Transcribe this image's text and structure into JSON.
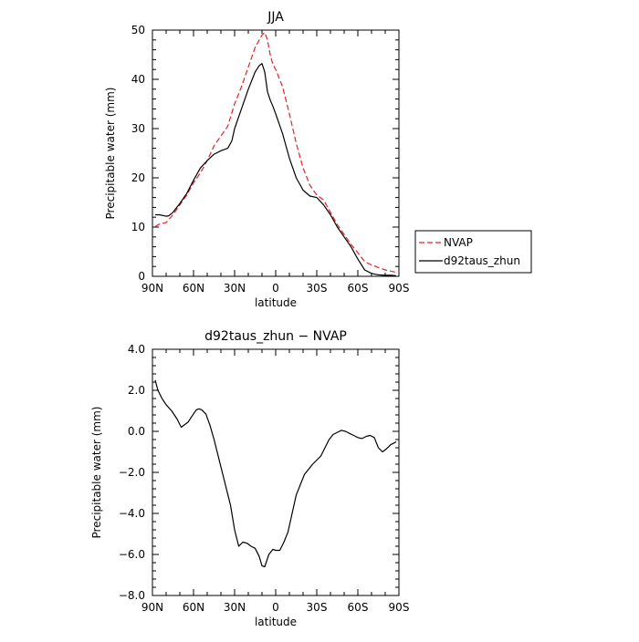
{
  "chart_data": [
    {
      "type": "line",
      "title": "JJA",
      "xlabel": "latitude",
      "ylabel": "Precipitable water (mm)",
      "xlim": [
        90,
        -90
      ],
      "ylim": [
        0,
        50
      ],
      "x_ticks": [
        90,
        60,
        30,
        0,
        -30,
        -60,
        -90
      ],
      "x_tick_labels": [
        "90N",
        "60N",
        "30N",
        "0",
        "30S",
        "60S",
        "90S"
      ],
      "y_ticks": [
        0,
        10,
        20,
        30,
        40,
        50
      ],
      "y_tick_labels": [
        "0",
        "10",
        "20",
        "30",
        "40",
        "50"
      ],
      "legend": {
        "placement": "right-outside"
      },
      "series": [
        {
          "name": "NVAP",
          "color": "#e8202a",
          "dash": true,
          "x": [
            88,
            85,
            80,
            75,
            70,
            65,
            60,
            55,
            50,
            45,
            40,
            35,
            30,
            25,
            20,
            15,
            12,
            10,
            8,
            6,
            4,
            2,
            0,
            -5,
            -10,
            -15,
            -20,
            -25,
            -30,
            -35,
            -40,
            -45,
            -50,
            -55,
            -60,
            -65,
            -70,
            -75,
            -80,
            -85,
            -88
          ],
          "y": [
            10.1,
            10.6,
            10.9,
            12.5,
            14.5,
            16.5,
            19.0,
            21.0,
            23.5,
            26.5,
            28.5,
            30.5,
            35.0,
            38.5,
            42.5,
            46.5,
            48.0,
            49.0,
            49.5,
            48.0,
            45.0,
            43.0,
            42.0,
            38.5,
            33.0,
            27.0,
            22.0,
            18.5,
            16.5,
            15.5,
            13.0,
            10.5,
            8.5,
            6.5,
            4.8,
            3.0,
            2.3,
            1.8,
            1.3,
            1.0,
            0.8
          ]
        },
        {
          "name": "d92taus_zhun",
          "color": "#000000",
          "dash": false,
          "x": [
            88,
            85,
            80,
            78,
            75,
            70,
            65,
            60,
            55,
            50,
            45,
            40,
            35,
            32,
            30,
            25,
            20,
            15,
            12,
            10,
            8,
            6,
            4,
            2,
            0,
            -5,
            -10,
            -15,
            -20,
            -25,
            -30,
            -35,
            -40,
            -45,
            -50,
            -55,
            -60,
            -65,
            -70,
            -75,
            -80,
            -85,
            -88
          ],
          "y": [
            12.5,
            12.5,
            12.2,
            12.3,
            13.0,
            14.8,
            16.8,
            19.5,
            22.0,
            23.5,
            24.8,
            25.5,
            26.0,
            27.5,
            30.0,
            34.0,
            38.0,
            41.5,
            42.8,
            43.2,
            41.5,
            37.5,
            35.8,
            34.5,
            33.0,
            29.0,
            24.0,
            20.0,
            17.5,
            16.3,
            16.0,
            14.5,
            12.5,
            10.0,
            8.0,
            6.0,
            3.5,
            1.3,
            0.6,
            0.3,
            0.2,
            0.2,
            0.1
          ]
        }
      ]
    },
    {
      "type": "line",
      "title": "d92taus_zhun − NVAP",
      "xlabel": "latitude",
      "ylabel": "Precipitable water (mm)",
      "xlim": [
        90,
        -90
      ],
      "ylim": [
        -8,
        4
      ],
      "x_ticks": [
        90,
        60,
        30,
        0,
        -30,
        -60,
        -90
      ],
      "x_tick_labels": [
        "90N",
        "60N",
        "30N",
        "0",
        "30S",
        "60S",
        "90S"
      ],
      "y_ticks": [
        -8,
        -6,
        -4,
        -2,
        0,
        2,
        4
      ],
      "y_tick_labels": [
        "−8.0",
        "−6.0",
        "−4.0",
        "−2.0",
        "0.0",
        "2.0",
        "4.0"
      ],
      "series": [
        {
          "color": "#000000",
          "x": [
            88,
            86,
            83,
            80,
            76,
            72,
            69,
            66,
            64,
            61,
            58,
            56,
            54,
            51,
            48,
            45,
            42,
            39,
            36,
            33,
            30,
            27,
            24,
            21,
            18,
            15,
            12,
            10,
            8,
            5,
            2,
            0,
            -3,
            -6,
            -9,
            -12,
            -15,
            -18,
            -21,
            -24,
            -27,
            -30,
            -33,
            -36,
            -39,
            -42,
            -45,
            -48,
            -51,
            -54,
            -57,
            -60,
            -63,
            -66,
            -69,
            -72,
            -75,
            -78,
            -81,
            -84,
            -87,
            -88
          ],
          "y": [
            2.5,
            2.0,
            1.6,
            1.3,
            1.0,
            0.6,
            0.2,
            0.35,
            0.45,
            0.75,
            1.05,
            1.1,
            1.05,
            0.85,
            0.3,
            -0.4,
            -1.2,
            -2.0,
            -2.8,
            -3.6,
            -4.8,
            -5.6,
            -5.4,
            -5.45,
            -5.6,
            -5.7,
            -6.1,
            -6.55,
            -6.6,
            -6.0,
            -5.75,
            -5.8,
            -5.8,
            -5.4,
            -4.9,
            -4.0,
            -3.1,
            -2.6,
            -2.1,
            -1.85,
            -1.6,
            -1.4,
            -1.2,
            -0.8,
            -0.4,
            -0.15,
            -0.05,
            0.05,
            0.0,
            -0.1,
            -0.2,
            -0.3,
            -0.35,
            -0.25,
            -0.2,
            -0.3,
            -0.8,
            -1.0,
            -0.85,
            -0.65,
            -0.55,
            -0.5
          ]
        }
      ]
    }
  ]
}
